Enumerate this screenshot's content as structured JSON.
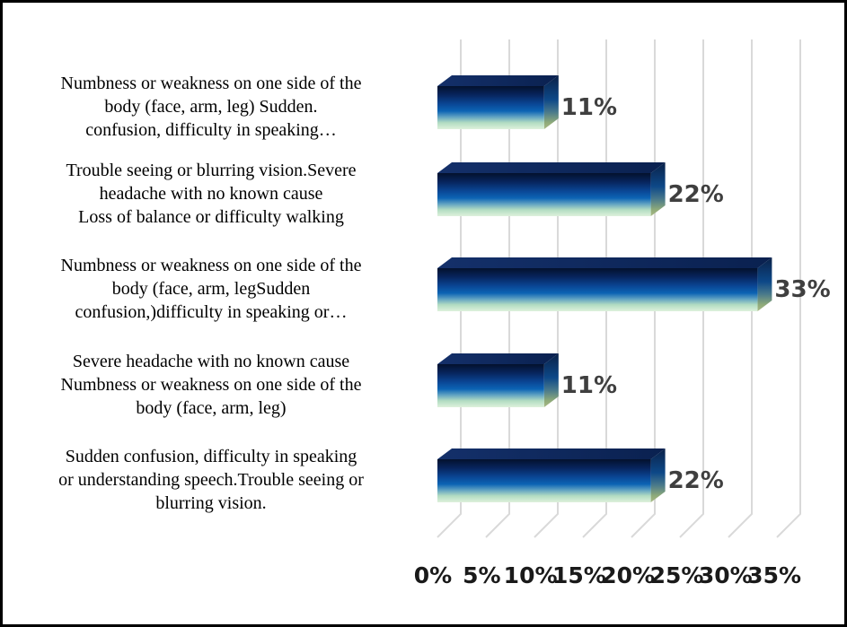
{
  "chart_data": {
    "type": "bar",
    "orientation": "horizontal",
    "style": "3d",
    "title": "",
    "grid": true,
    "legend": false,
    "xlim": [
      0,
      35
    ],
    "x_tick_step": 5,
    "x_ticks": [
      "0%",
      "5%",
      "10%",
      "15%",
      "20%",
      "25%",
      "30%",
      "35%"
    ],
    "categories": [
      {
        "lines": [
          "Numbness or weakness on one side of the",
          "body (face, arm, leg) Sudden.",
          "confusion, difficulty in speaking…"
        ]
      },
      {
        "lines": [
          "Trouble seeing or blurring vision.Severe",
          "headache with no known cause",
          "Loss of balance or difficulty walking"
        ]
      },
      {
        "lines": [
          "Numbness or weakness on one side of the",
          "body (face, arm, legSudden",
          "confusion,)difficulty in speaking or…"
        ]
      },
      {
        "lines": [
          "Severe headache with no known cause",
          "Numbness or weakness on one side of the",
          "body (face, arm, leg)"
        ]
      },
      {
        "lines": [
          "Sudden confusion, difficulty in speaking",
          "or understanding speech.Trouble seeing or",
          "blurring vision."
        ]
      }
    ],
    "values": [
      11,
      22,
      33,
      11,
      22
    ],
    "value_labels": [
      "11%",
      "22%",
      "33%",
      "11%",
      "22%"
    ],
    "colors": {
      "background": "#ffffff",
      "border": "#000000",
      "gridline": "#d9d9d9",
      "category_text": "#000000",
      "tick_text": "#1a1a1a",
      "value_text": "#3f3f3f",
      "bar_top_stops": [
        [
          "0",
          "#14306a"
        ],
        [
          "1",
          "#0a2150"
        ]
      ],
      "bar_front_stops": [
        [
          "0",
          "#03112c"
        ],
        [
          "0.2",
          "#07245c"
        ],
        [
          "0.42",
          "#0a4796"
        ],
        [
          "0.58",
          "#0c64b4"
        ],
        [
          "0.72",
          "#63a4c2"
        ],
        [
          "0.85",
          "#b2dcc2"
        ],
        [
          "1",
          "#def1dc"
        ]
      ],
      "bar_side_stops": [
        [
          "0",
          "#0a2148"
        ],
        [
          "0.45",
          "#0d4888"
        ],
        [
          "0.68",
          "#49798b"
        ],
        [
          "0.88",
          "#90ab7a"
        ],
        [
          "1",
          "#a9b985"
        ]
      ]
    }
  }
}
